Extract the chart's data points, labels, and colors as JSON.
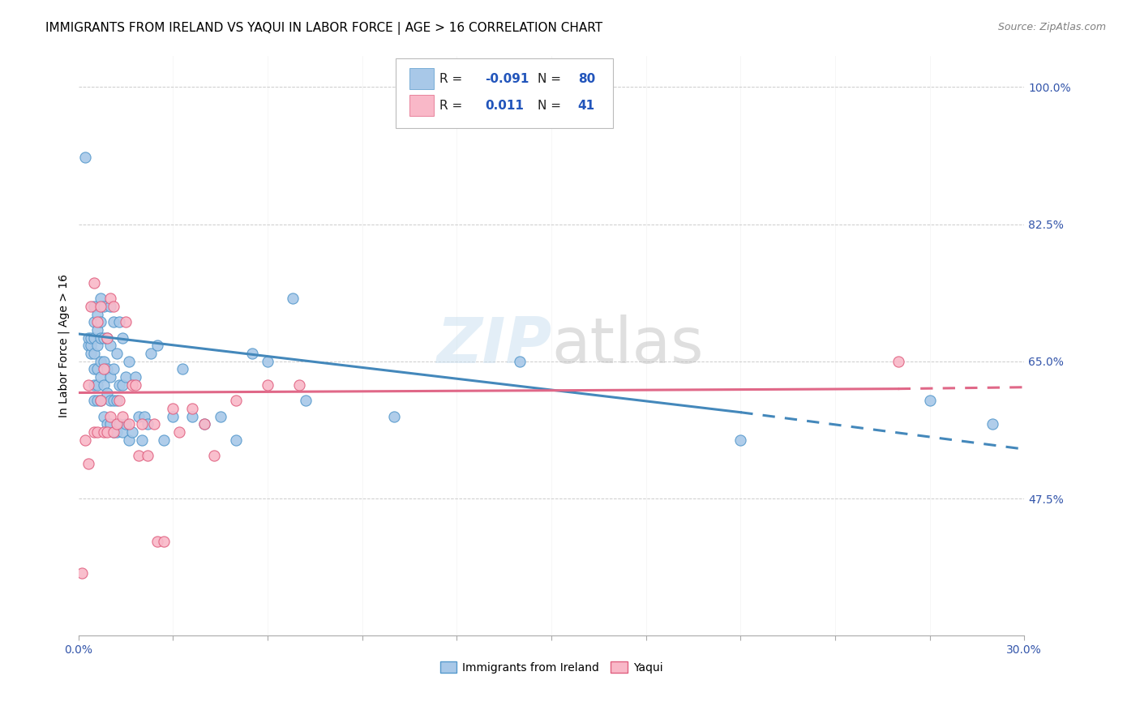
{
  "title": "IMMIGRANTS FROM IRELAND VS YAQUI IN LABOR FORCE | AGE > 16 CORRELATION CHART",
  "source": "Source: ZipAtlas.com",
  "ylabel": "In Labor Force | Age > 16",
  "xlim": [
    0.0,
    0.3
  ],
  "ylim": [
    0.3,
    1.04
  ],
  "xticks": [
    0.0,
    0.03,
    0.06,
    0.09,
    0.12,
    0.15,
    0.18,
    0.21,
    0.24,
    0.27,
    0.3
  ],
  "xticklabels": [
    "0.0%",
    "",
    "",
    "",
    "",
    "",
    "",
    "",
    "",
    "",
    "30.0%"
  ],
  "yticks_right": [
    0.475,
    0.65,
    0.825,
    1.0
  ],
  "yticklabels_right": [
    "47.5%",
    "65.0%",
    "82.5%",
    "100.0%"
  ],
  "blue_color": "#a8c8e8",
  "blue_edge": "#5599cc",
  "pink_color": "#f9b8c8",
  "pink_edge": "#e06080",
  "blue_line_color": "#4488bb",
  "pink_line_color": "#e06888",
  "grid_color": "#cccccc",
  "background_color": "#ffffff",
  "title_fontsize": 11,
  "axis_label_fontsize": 10,
  "tick_fontsize": 10,
  "blue_scatter_x": [
    0.002,
    0.003,
    0.003,
    0.004,
    0.004,
    0.004,
    0.005,
    0.005,
    0.005,
    0.005,
    0.005,
    0.005,
    0.005,
    0.006,
    0.006,
    0.006,
    0.006,
    0.006,
    0.006,
    0.007,
    0.007,
    0.007,
    0.007,
    0.007,
    0.007,
    0.008,
    0.008,
    0.008,
    0.008,
    0.008,
    0.009,
    0.009,
    0.009,
    0.009,
    0.01,
    0.01,
    0.01,
    0.01,
    0.01,
    0.011,
    0.011,
    0.011,
    0.011,
    0.012,
    0.012,
    0.012,
    0.013,
    0.013,
    0.013,
    0.014,
    0.014,
    0.014,
    0.015,
    0.015,
    0.016,
    0.016,
    0.017,
    0.018,
    0.019,
    0.02,
    0.021,
    0.022,
    0.023,
    0.025,
    0.027,
    0.03,
    0.033,
    0.036,
    0.04,
    0.045,
    0.05,
    0.055,
    0.06,
    0.068,
    0.072,
    0.1,
    0.14,
    0.21,
    0.27,
    0.29
  ],
  "blue_scatter_y": [
    0.91,
    0.67,
    0.68,
    0.66,
    0.67,
    0.68,
    0.6,
    0.62,
    0.64,
    0.66,
    0.68,
    0.7,
    0.72,
    0.6,
    0.62,
    0.64,
    0.67,
    0.69,
    0.71,
    0.6,
    0.63,
    0.65,
    0.68,
    0.7,
    0.73,
    0.58,
    0.62,
    0.65,
    0.68,
    0.72,
    0.57,
    0.61,
    0.64,
    0.68,
    0.57,
    0.6,
    0.63,
    0.67,
    0.72,
    0.56,
    0.6,
    0.64,
    0.7,
    0.56,
    0.6,
    0.66,
    0.57,
    0.62,
    0.7,
    0.56,
    0.62,
    0.68,
    0.57,
    0.63,
    0.55,
    0.65,
    0.56,
    0.63,
    0.58,
    0.55,
    0.58,
    0.57,
    0.66,
    0.67,
    0.55,
    0.58,
    0.64,
    0.58,
    0.57,
    0.58,
    0.55,
    0.66,
    0.65,
    0.73,
    0.6,
    0.58,
    0.65,
    0.55,
    0.6,
    0.57
  ],
  "pink_scatter_x": [
    0.001,
    0.002,
    0.003,
    0.003,
    0.004,
    0.005,
    0.005,
    0.006,
    0.006,
    0.007,
    0.007,
    0.008,
    0.008,
    0.009,
    0.009,
    0.01,
    0.01,
    0.011,
    0.011,
    0.012,
    0.013,
    0.014,
    0.015,
    0.016,
    0.017,
    0.018,
    0.019,
    0.02,
    0.022,
    0.024,
    0.025,
    0.027,
    0.03,
    0.032,
    0.036,
    0.04,
    0.043,
    0.05,
    0.06,
    0.07,
    0.26
  ],
  "pink_scatter_y": [
    0.38,
    0.55,
    0.52,
    0.62,
    0.72,
    0.56,
    0.75,
    0.56,
    0.7,
    0.6,
    0.72,
    0.56,
    0.64,
    0.56,
    0.68,
    0.58,
    0.73,
    0.56,
    0.72,
    0.57,
    0.6,
    0.58,
    0.7,
    0.57,
    0.62,
    0.62,
    0.53,
    0.57,
    0.53,
    0.57,
    0.42,
    0.42,
    0.59,
    0.56,
    0.59,
    0.57,
    0.53,
    0.6,
    0.62,
    0.62,
    0.65
  ],
  "blue_line_x0": 0.0,
  "blue_line_y0": 0.685,
  "blue_line_x1": 0.21,
  "blue_line_y1": 0.585,
  "blue_line_dash_x1": 0.3,
  "blue_line_dash_y1": 0.538,
  "pink_line_x0": 0.0,
  "pink_line_y0": 0.61,
  "pink_line_x1": 0.26,
  "pink_line_y1": 0.615,
  "pink_line_dash_x1": 0.3,
  "pink_line_dash_y1": 0.617
}
